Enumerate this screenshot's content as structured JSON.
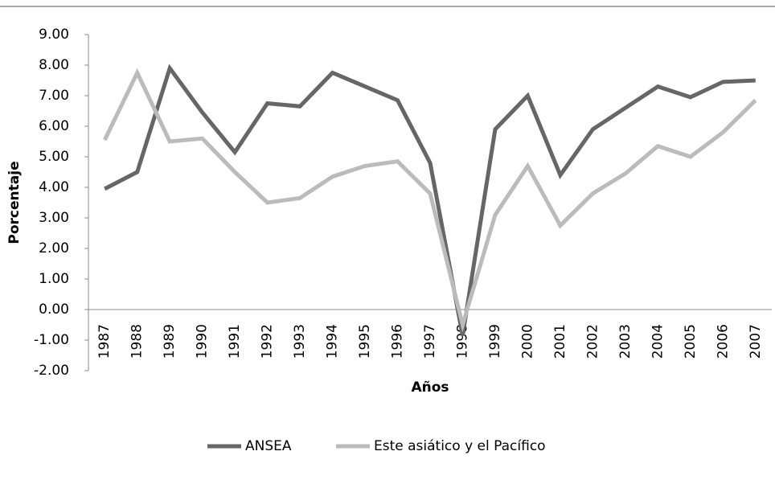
{
  "chart_data": {
    "type": "line",
    "y_label": "Porcentaje",
    "x_label": "Años",
    "categories": [
      "1987",
      "1988",
      "1989",
      "1990",
      "1991",
      "1992",
      "1993",
      "1994",
      "1995",
      "1996",
      "1997",
      "1998",
      "1999",
      "2000",
      "2001",
      "2002",
      "2003",
      "2004",
      "2005",
      "2006",
      "2007"
    ],
    "series": [
      {
        "name": "ANSEA",
        "color": "#666666",
        "values": [
          3.95,
          4.5,
          7.9,
          6.45,
          5.15,
          6.75,
          6.65,
          7.75,
          7.3,
          6.85,
          4.8,
          -0.85,
          5.9,
          7.0,
          4.4,
          5.9,
          6.6,
          7.3,
          6.95,
          7.45,
          7.5
        ]
      },
      {
        "name": "Este asiático y el Pacífico",
        "color": "#bbbbbb",
        "values": [
          5.55,
          7.75,
          5.5,
          5.6,
          4.5,
          3.5,
          3.65,
          4.35,
          4.7,
          4.85,
          3.8,
          -0.5,
          3.1,
          4.7,
          2.75,
          3.8,
          4.45,
          5.35,
          5.0,
          5.8,
          6.85
        ]
      }
    ],
    "ylim": [
      -2,
      9
    ],
    "yticks": [
      {
        "value": -2,
        "label": "-2.00"
      },
      {
        "value": -1,
        "label": "-1.00"
      },
      {
        "value": 0,
        "label": "0.00"
      },
      {
        "value": 1,
        "label": "1.00"
      },
      {
        "value": 2,
        "label": "2.00"
      },
      {
        "value": 3,
        "label": "3.00"
      },
      {
        "value": 4,
        "label": "4.00"
      },
      {
        "value": 5,
        "label": "5.00"
      },
      {
        "value": 6,
        "label": "6.00"
      },
      {
        "value": 7,
        "label": "7.00"
      },
      {
        "value": 8,
        "label": "8.00"
      },
      {
        "value": 9,
        "label": "9.00"
      }
    ],
    "grid": false,
    "legend": "bottom"
  }
}
